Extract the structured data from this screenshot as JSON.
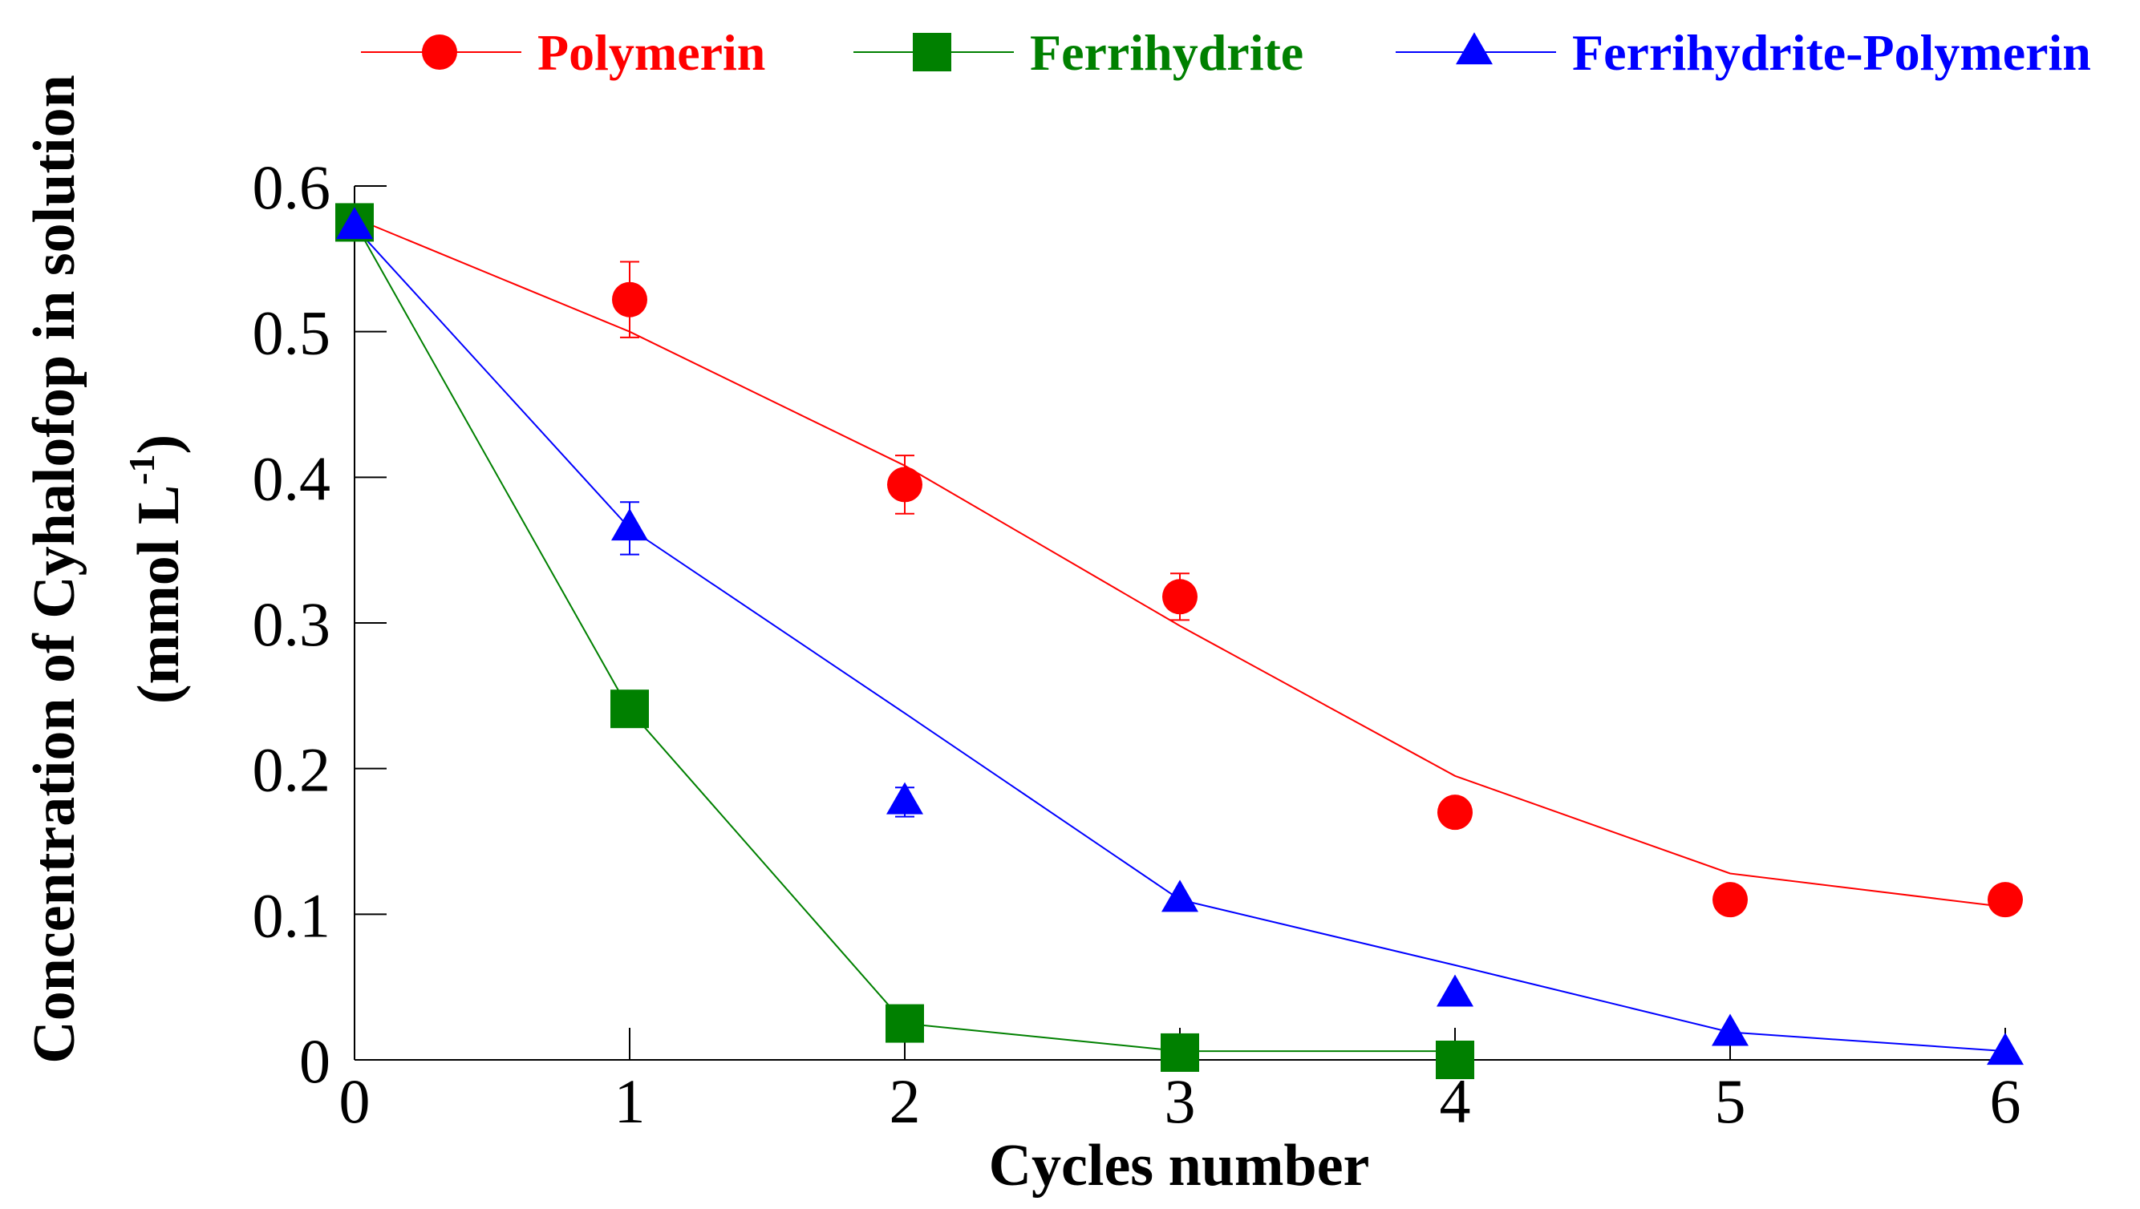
{
  "chart_data": {
    "type": "line",
    "title": "",
    "xlabel": "Cycles number",
    "ylabel_line1": "Concentration of Cyhalofop in solution",
    "ylabel_line2_prefix": "(mmol L",
    "ylabel_line2_superscript": "-1",
    "ylabel_line2_suffix": ")",
    "xlim": [
      0,
      6
    ],
    "ylim": [
      0,
      0.6
    ],
    "xticks": [
      0,
      1,
      2,
      3,
      4,
      5,
      6
    ],
    "xtick_labels": [
      "0",
      "1",
      "2",
      "3",
      "4",
      "5",
      "6"
    ],
    "yticks": [
      0,
      0.1,
      0.2,
      0.3,
      0.4,
      0.5,
      0.6
    ],
    "ytick_labels": [
      "0",
      "0.1",
      "0.2",
      "0.3",
      "0.4",
      "0.5",
      "0.6"
    ],
    "grid": false,
    "legend_position": "top",
    "series": [
      {
        "name": "Polymerin",
        "color": "#ff0000",
        "marker": "circle",
        "x": [
          0,
          1,
          2,
          3,
          4,
          5,
          6
        ],
        "points": [
          0.575,
          0.522,
          0.395,
          0.318,
          0.17,
          0.11,
          0.11
        ],
        "errors": [
          0.0,
          0.026,
          0.02,
          0.016,
          0.0,
          0.0,
          0.0
        ],
        "fit": [
          0.578,
          0.5,
          0.408,
          0.298,
          0.195,
          0.128,
          0.105
        ]
      },
      {
        "name": "Ferrihydrite",
        "color": "#008000",
        "marker": "square",
        "x": [
          0,
          1,
          2,
          3,
          4
        ],
        "points": [
          0.575,
          0.241,
          0.025,
          0.005,
          0.0
        ],
        "errors": [
          0.0,
          0.0,
          0.0,
          0.0,
          0.0
        ],
        "fit": [
          0.575,
          0.24,
          0.025,
          0.006,
          0.006
        ]
      },
      {
        "name": "Ferrihydrite-Polymerin",
        "color": "#0000ff",
        "marker": "triangle",
        "x": [
          0,
          1,
          2,
          3,
          4,
          5,
          6
        ],
        "points": [
          0.572,
          0.365,
          0.177,
          0.11,
          0.045,
          0.018,
          0.005
        ],
        "errors": [
          0.0,
          0.018,
          0.01,
          0.0,
          0.0,
          0.0,
          0.0
        ],
        "fit": [
          0.572,
          0.365,
          0.238,
          0.11,
          0.065,
          0.019,
          0.006
        ]
      }
    ]
  }
}
